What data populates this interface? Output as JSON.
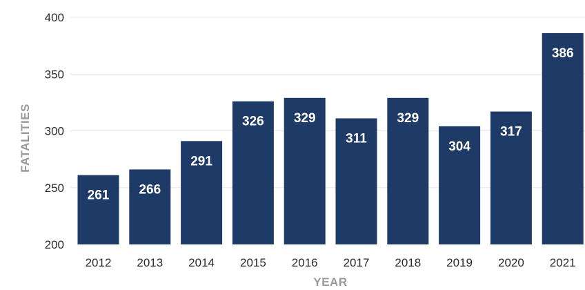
{
  "chart_data": {
    "type": "bar",
    "categories": [
      "2012",
      "2013",
      "2014",
      "2015",
      "2016",
      "2017",
      "2018",
      "2019",
      "2020",
      "2021"
    ],
    "values": [
      261,
      266,
      291,
      326,
      329,
      311,
      329,
      304,
      317,
      386
    ],
    "data_labels": [
      "261",
      "266",
      "291",
      "326",
      "329",
      "311",
      "329",
      "304",
      "317",
      "386"
    ],
    "xlabel": "YEAR",
    "ylabel": "FATALITIES",
    "ylim": [
      200,
      400
    ],
    "yticks": [
      200,
      250,
      300,
      350,
      400
    ],
    "ytick_labels": [
      "200",
      "250",
      "300",
      "350",
      "400"
    ],
    "grid": true,
    "legend": "none",
    "colors": {
      "bar": "#1e3a66",
      "label": "#ffffff",
      "grid": "#e6e6e6"
    }
  }
}
